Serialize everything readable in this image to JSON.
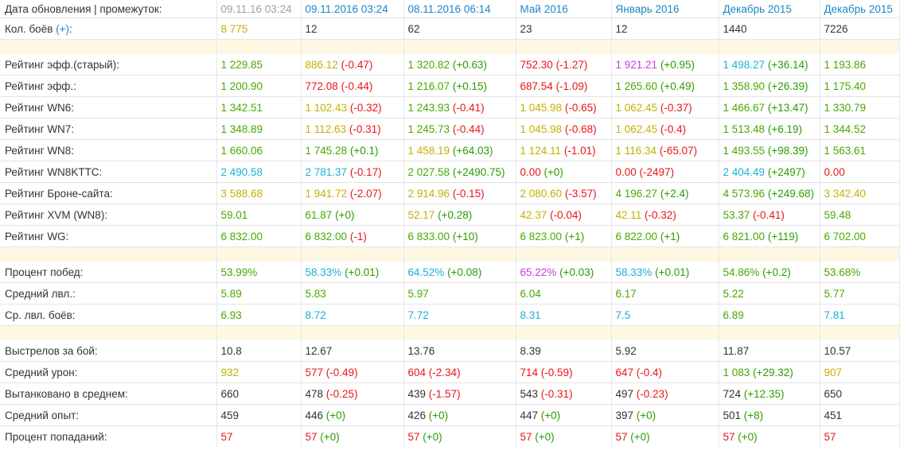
{
  "header": {
    "label": "Дата обновления | промежуток:",
    "columns": [
      {
        "text": "09.11.16 03:24",
        "style": "muted"
      },
      {
        "text": "09.11.2016 03:24",
        "style": "link"
      },
      {
        "text": "08.11.2016 06:14",
        "style": "link"
      },
      {
        "text": "Май 2016",
        "style": "link"
      },
      {
        "text": "Январь 2016",
        "style": "link"
      },
      {
        "text": "Декабрь 2015",
        "style": "link"
      },
      {
        "text": "Декабрь 2015",
        "style": "link"
      }
    ]
  },
  "battles": {
    "label": "Кол. боёв",
    "plus": "(+)",
    "values": [
      {
        "v": "8 775",
        "c": "v-yellow"
      },
      {
        "v": "12",
        "c": "v-black"
      },
      {
        "v": "62",
        "c": "v-black"
      },
      {
        "v": "23",
        "c": "v-black"
      },
      {
        "v": "12",
        "c": "v-black"
      },
      {
        "v": "1440",
        "c": "v-black"
      },
      {
        "v": "7226",
        "c": "v-black"
      }
    ]
  },
  "sections": [
    {
      "rows": [
        {
          "label": "Рейтинг эфф.(старый):",
          "cells": [
            {
              "v": "1 229.85",
              "c": "v-green"
            },
            {
              "v": "886.12",
              "c": "v-yellow",
              "d": "(-0.47)",
              "dc": "neg"
            },
            {
              "v": "1 320.82",
              "c": "v-green",
              "d": "(+0.63)",
              "dc": "pos"
            },
            {
              "v": "752.30",
              "c": "v-red",
              "d": "(-1.27)",
              "dc": "neg"
            },
            {
              "v": "1 921.21",
              "c": "v-purple",
              "d": "(+0.95)",
              "dc": "pos"
            },
            {
              "v": "1 498.27",
              "c": "v-teal",
              "d": "(+36.14)",
              "dc": "pos"
            },
            {
              "v": "1 193.86",
              "c": "v-green"
            }
          ]
        },
        {
          "label": "Рейтинг эфф.:",
          "cells": [
            {
              "v": "1 200.90",
              "c": "v-green"
            },
            {
              "v": "772.08",
              "c": "v-red",
              "d": "(-0.44)",
              "dc": "neg"
            },
            {
              "v": "1 216.07",
              "c": "v-green",
              "d": "(+0.15)",
              "dc": "pos"
            },
            {
              "v": "687.54",
              "c": "v-red",
              "d": "(-1.09)",
              "dc": "neg"
            },
            {
              "v": "1 265.60",
              "c": "v-green",
              "d": "(+0.49)",
              "dc": "pos"
            },
            {
              "v": "1 358.90",
              "c": "v-green",
              "d": "(+26.39)",
              "dc": "pos"
            },
            {
              "v": "1 175.40",
              "c": "v-green"
            }
          ]
        },
        {
          "label": "Рейтинг WN6:",
          "cells": [
            {
              "v": "1 342.51",
              "c": "v-green"
            },
            {
              "v": "1 102.43",
              "c": "v-yellow",
              "d": "(-0.32)",
              "dc": "neg"
            },
            {
              "v": "1 243.93",
              "c": "v-green",
              "d": "(-0.41)",
              "dc": "neg"
            },
            {
              "v": "1 045.98",
              "c": "v-yellow",
              "d": "(-0.65)",
              "dc": "neg"
            },
            {
              "v": "1 062.45",
              "c": "v-yellow",
              "d": "(-0.37)",
              "dc": "neg"
            },
            {
              "v": "1 466.67",
              "c": "v-green",
              "d": "(+13.47)",
              "dc": "pos"
            },
            {
              "v": "1 330.79",
              "c": "v-green"
            }
          ]
        },
        {
          "label": "Рейтинг WN7:",
          "cells": [
            {
              "v": "1 348.89",
              "c": "v-green"
            },
            {
              "v": "1 112.63",
              "c": "v-yellow",
              "d": "(-0.31)",
              "dc": "neg"
            },
            {
              "v": "1 245.73",
              "c": "v-green",
              "d": "(-0.44)",
              "dc": "neg"
            },
            {
              "v": "1 045.98",
              "c": "v-yellow",
              "d": "(-0.68)",
              "dc": "neg"
            },
            {
              "v": "1 062.45",
              "c": "v-yellow",
              "d": "(-0.4)",
              "dc": "neg"
            },
            {
              "v": "1 513.48",
              "c": "v-green",
              "d": "(+6.19)",
              "dc": "pos"
            },
            {
              "v": "1 344.52",
              "c": "v-green"
            }
          ]
        },
        {
          "label": "Рейтинг WN8:",
          "cells": [
            {
              "v": "1 660.06",
              "c": "v-green"
            },
            {
              "v": "1 745.28",
              "c": "v-green",
              "d": "(+0.1)",
              "dc": "pos"
            },
            {
              "v": "1 458.19",
              "c": "v-yellow",
              "d": "(+64.03)",
              "dc": "pos"
            },
            {
              "v": "1 124.11",
              "c": "v-yellow",
              "d": "(-1.01)",
              "dc": "neg"
            },
            {
              "v": "1 116.34",
              "c": "v-yellow",
              "d": "(-65.07)",
              "dc": "neg"
            },
            {
              "v": "1 493.55",
              "c": "v-green",
              "d": "(+98.39)",
              "dc": "pos"
            },
            {
              "v": "1 563.61",
              "c": "v-green"
            }
          ]
        },
        {
          "label": "Рейтинг WN8KTTC:",
          "cells": [
            {
              "v": "2 490.58",
              "c": "v-teal"
            },
            {
              "v": "2 781.37",
              "c": "v-teal",
              "d": "(-0.17)",
              "dc": "neg"
            },
            {
              "v": "2 027.58",
              "c": "v-green",
              "d": "(+2490.75)",
              "dc": "pos"
            },
            {
              "v": "0.00",
              "c": "v-red",
              "d": "(+0)",
              "dc": "pos"
            },
            {
              "v": "0.00",
              "c": "v-red",
              "d": "(-2497)",
              "dc": "neg"
            },
            {
              "v": "2 404.49",
              "c": "v-teal",
              "d": "(+2497)",
              "dc": "pos"
            },
            {
              "v": "0.00",
              "c": "v-red"
            }
          ]
        },
        {
          "label": "Рейтинг Броне-сайта:",
          "cells": [
            {
              "v": "3 588.68",
              "c": "v-yellow"
            },
            {
              "v": "1 941.72",
              "c": "v-yellow",
              "d": "(-2.07)",
              "dc": "neg"
            },
            {
              "v": "2 914.96",
              "c": "v-yellow",
              "d": "(-0.15)",
              "dc": "neg"
            },
            {
              "v": "2 080.60",
              "c": "v-yellow",
              "d": "(-3.57)",
              "dc": "neg"
            },
            {
              "v": "4 196.27",
              "c": "v-green",
              "d": "(+2.4)",
              "dc": "pos"
            },
            {
              "v": "4 573.96",
              "c": "v-green",
              "d": "(+249.68)",
              "dc": "pos"
            },
            {
              "v": "3 342.40",
              "c": "v-yellow"
            }
          ]
        },
        {
          "label": "Рейтинг XVM (WN8):",
          "cells": [
            {
              "v": "59.01",
              "c": "v-green"
            },
            {
              "v": "61.87",
              "c": "v-green",
              "d": "(+0)",
              "dc": "pos"
            },
            {
              "v": "52.17",
              "c": "v-yellow",
              "d": "(+0.28)",
              "dc": "pos"
            },
            {
              "v": "42.37",
              "c": "v-yellow",
              "d": "(-0.04)",
              "dc": "neg"
            },
            {
              "v": "42.11",
              "c": "v-yellow",
              "d": "(-0.32)",
              "dc": "neg"
            },
            {
              "v": "53.37",
              "c": "v-green",
              "d": "(-0.41)",
              "dc": "neg"
            },
            {
              "v": "59.48",
              "c": "v-green"
            }
          ]
        },
        {
          "label": "Рейтинг WG:",
          "cells": [
            {
              "v": "6 832.00",
              "c": "v-green"
            },
            {
              "v": "6 832.00",
              "c": "v-green",
              "d": "(-1)",
              "dc": "neg"
            },
            {
              "v": "6 833.00",
              "c": "v-green",
              "d": "(+10)",
              "dc": "pos"
            },
            {
              "v": "6 823.00",
              "c": "v-green",
              "d": "(+1)",
              "dc": "pos"
            },
            {
              "v": "6 822.00",
              "c": "v-green",
              "d": "(+1)",
              "dc": "pos"
            },
            {
              "v": "6 821.00",
              "c": "v-green",
              "d": "(+119)",
              "dc": "pos"
            },
            {
              "v": "6 702.00",
              "c": "v-green"
            }
          ]
        }
      ]
    },
    {
      "rows": [
        {
          "label": "Процент побед:",
          "cells": [
            {
              "v": "53.99%",
              "c": "v-green"
            },
            {
              "v": "58.33%",
              "c": "v-teal",
              "d": "(+0.01)",
              "dc": "pos"
            },
            {
              "v": "64.52%",
              "c": "v-teal",
              "d": "(+0.08)",
              "dc": "pos"
            },
            {
              "v": "65.22%",
              "c": "v-purple",
              "d": "(+0.03)",
              "dc": "pos"
            },
            {
              "v": "58.33%",
              "c": "v-teal",
              "d": "(+0.01)",
              "dc": "pos"
            },
            {
              "v": "54.86%",
              "c": "v-green",
              "d": "(+0.2)",
              "dc": "pos"
            },
            {
              "v": "53.68%",
              "c": "v-green"
            }
          ]
        },
        {
          "label": "Средний лвл.:",
          "cells": [
            {
              "v": "5.89",
              "c": "v-green"
            },
            {
              "v": "5.83",
              "c": "v-green"
            },
            {
              "v": "5.97",
              "c": "v-green"
            },
            {
              "v": "6.04",
              "c": "v-green"
            },
            {
              "v": "6.17",
              "c": "v-green"
            },
            {
              "v": "5.22",
              "c": "v-green"
            },
            {
              "v": "5.77",
              "c": "v-green"
            }
          ]
        },
        {
          "label": "Ср. лвл. боёв:",
          "cells": [
            {
              "v": "6.93",
              "c": "v-green"
            },
            {
              "v": "8.72",
              "c": "v-teal"
            },
            {
              "v": "7.72",
              "c": "v-teal"
            },
            {
              "v": "8.31",
              "c": "v-teal"
            },
            {
              "v": "7.5",
              "c": "v-teal"
            },
            {
              "v": "6.89",
              "c": "v-green"
            },
            {
              "v": "7.81",
              "c": "v-teal"
            }
          ]
        }
      ]
    },
    {
      "rows": [
        {
          "label": "Выстрелов за бой:",
          "cells": [
            {
              "v": "10.8",
              "c": "v-black"
            },
            {
              "v": "12.67",
              "c": "v-black"
            },
            {
              "v": "13.76",
              "c": "v-black"
            },
            {
              "v": "8.39",
              "c": "v-black"
            },
            {
              "v": "5.92",
              "c": "v-black"
            },
            {
              "v": "11.87",
              "c": "v-black"
            },
            {
              "v": "10.57",
              "c": "v-black"
            }
          ]
        },
        {
          "label": "Средний урон:",
          "cells": [
            {
              "v": "932",
              "c": "v-yellow"
            },
            {
              "v": "577",
              "c": "v-red",
              "d": "(-0.49)",
              "dc": "neg"
            },
            {
              "v": "604",
              "c": "v-red",
              "d": "(-2.34)",
              "dc": "neg"
            },
            {
              "v": "714",
              "c": "v-red",
              "d": "(-0.59)",
              "dc": "neg"
            },
            {
              "v": "647",
              "c": "v-red",
              "d": "(-0.4)",
              "dc": "neg"
            },
            {
              "v": "1 083",
              "c": "v-green",
              "d": "(+29.32)",
              "dc": "pos"
            },
            {
              "v": "907",
              "c": "v-yellow"
            }
          ]
        },
        {
          "label": "Вытанковано в среднем:",
          "cells": [
            {
              "v": "660",
              "c": "v-black"
            },
            {
              "v": "478",
              "c": "v-black",
              "d": "(-0.25)",
              "dc": "neg"
            },
            {
              "v": "439",
              "c": "v-black",
              "d": "(-1.57)",
              "dc": "neg"
            },
            {
              "v": "543",
              "c": "v-black",
              "d": "(-0.31)",
              "dc": "neg"
            },
            {
              "v": "497",
              "c": "v-black",
              "d": "(-0.23)",
              "dc": "neg"
            },
            {
              "v": "724",
              "c": "v-black",
              "d": "(+12.35)",
              "dc": "pos"
            },
            {
              "v": "650",
              "c": "v-black"
            }
          ]
        },
        {
          "label": "Средний опыт:",
          "cells": [
            {
              "v": "459",
              "c": "v-black"
            },
            {
              "v": "446",
              "c": "v-black",
              "d": "(+0)",
              "dc": "pos"
            },
            {
              "v": "426",
              "c": "v-black",
              "d": "(+0)",
              "dc": "pos"
            },
            {
              "v": "447",
              "c": "v-black",
              "d": "(+0)",
              "dc": "pos"
            },
            {
              "v": "397",
              "c": "v-black",
              "d": "(+0)",
              "dc": "pos"
            },
            {
              "v": "501",
              "c": "v-black",
              "d": "(+8)",
              "dc": "pos"
            },
            {
              "v": "451",
              "c": "v-black"
            }
          ]
        },
        {
          "label": "Процент попаданий:",
          "cells": [
            {
              "v": "57",
              "c": "v-red"
            },
            {
              "v": "57",
              "c": "v-red",
              "d": "(+0)",
              "dc": "pos"
            },
            {
              "v": "57",
              "c": "v-red",
              "d": "(+0)",
              "dc": "pos"
            },
            {
              "v": "57",
              "c": "v-red",
              "d": "(+0)",
              "dc": "pos"
            },
            {
              "v": "57",
              "c": "v-red",
              "d": "(+0)",
              "dc": "pos"
            },
            {
              "v": "57",
              "c": "v-red",
              "d": "(+0)",
              "dc": "pos"
            },
            {
              "v": "57",
              "c": "v-red"
            }
          ]
        }
      ]
    }
  ]
}
